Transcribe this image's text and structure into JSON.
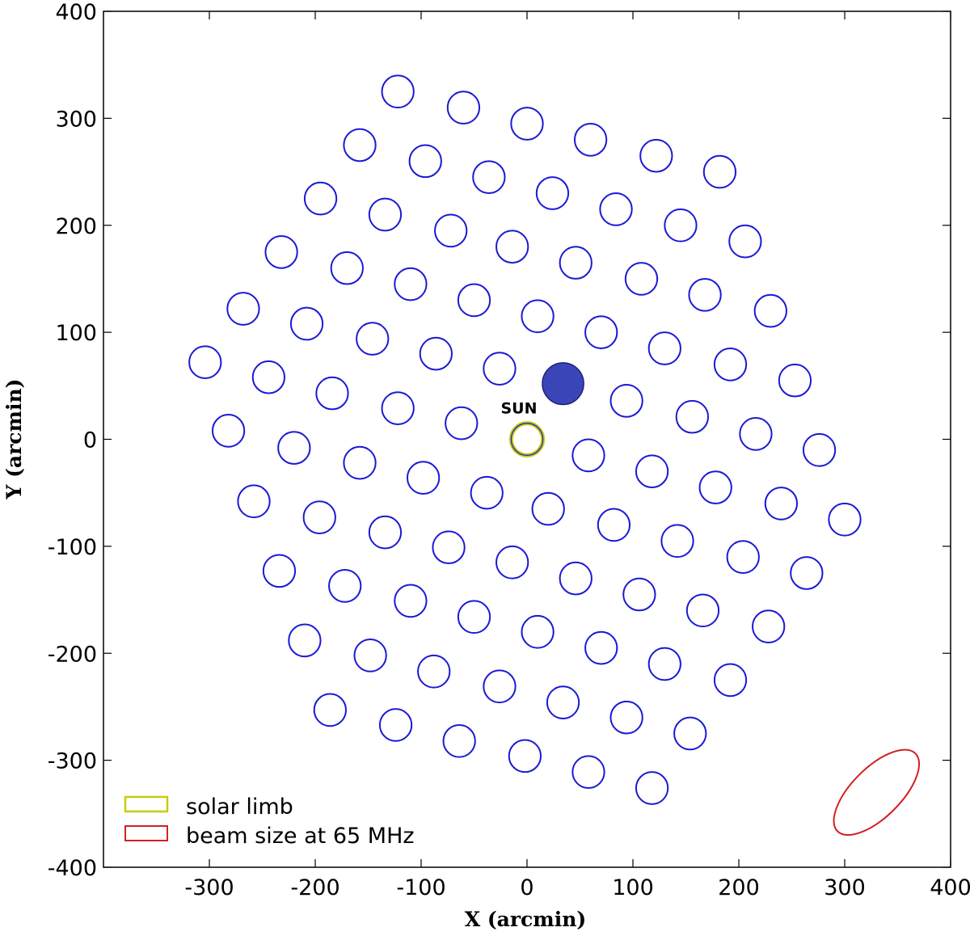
{
  "chart_data": {
    "type": "scatter",
    "xlabel": "X (arcmin)",
    "ylabel": "Y (arcmin)",
    "xlim": [
      -400,
      400
    ],
    "ylim": [
      -400,
      400
    ],
    "x_ticks": [
      -300,
      -200,
      -100,
      0,
      100,
      200,
      300,
      400
    ],
    "y_ticks": [
      -400,
      -300,
      -200,
      -100,
      0,
      100,
      200,
      300,
      400
    ],
    "grid": false,
    "beam_radius": 15,
    "colors": {
      "beam": "#1a1ad6",
      "filled_beam": "#3a46b8",
      "solar_limb": "#c7cc10",
      "beam_size": "#d42020"
    },
    "beams": [
      {
        "x": -122,
        "y": 325
      },
      {
        "x": -60,
        "y": 310
      },
      {
        "x": 0,
        "y": 295
      },
      {
        "x": 60,
        "y": 280
      },
      {
        "x": 122,
        "y": 265
      },
      {
        "x": 182,
        "y": 250
      },
      {
        "x": -158,
        "y": 275
      },
      {
        "x": -96,
        "y": 260
      },
      {
        "x": -36,
        "y": 245
      },
      {
        "x": 24,
        "y": 230
      },
      {
        "x": 84,
        "y": 215
      },
      {
        "x": 145,
        "y": 200
      },
      {
        "x": 206,
        "y": 185
      },
      {
        "x": -195,
        "y": 225
      },
      {
        "x": -134,
        "y": 210
      },
      {
        "x": -72,
        "y": 195
      },
      {
        "x": -14,
        "y": 180
      },
      {
        "x": 46,
        "y": 165
      },
      {
        "x": 108,
        "y": 150
      },
      {
        "x": 168,
        "y": 135
      },
      {
        "x": 230,
        "y": 120
      },
      {
        "x": -232,
        "y": 175
      },
      {
        "x": -170,
        "y": 160
      },
      {
        "x": -110,
        "y": 145
      },
      {
        "x": -50,
        "y": 130
      },
      {
        "x": 10,
        "y": 115
      },
      {
        "x": 70,
        "y": 100
      },
      {
        "x": 130,
        "y": 85
      },
      {
        "x": 192,
        "y": 70
      },
      {
        "x": 253,
        "y": 55
      },
      {
        "x": -268,
        "y": 122
      },
      {
        "x": -208,
        "y": 108
      },
      {
        "x": -146,
        "y": 94
      },
      {
        "x": -86,
        "y": 80
      },
      {
        "x": -26,
        "y": 66
      },
      {
        "x": 34,
        "y": 52,
        "filled": true
      },
      {
        "x": 94,
        "y": 36
      },
      {
        "x": 156,
        "y": 21
      },
      {
        "x": 216,
        "y": 5
      },
      {
        "x": 276,
        "y": -10
      },
      {
        "x": -304,
        "y": 72
      },
      {
        "x": -244,
        "y": 58
      },
      {
        "x": -184,
        "y": 43
      },
      {
        "x": -122,
        "y": 29
      },
      {
        "x": -62,
        "y": 15
      },
      {
        "x": 58,
        "y": -15
      },
      {
        "x": 118,
        "y": -30
      },
      {
        "x": 178,
        "y": -45
      },
      {
        "x": 240,
        "y": -60
      },
      {
        "x": 300,
        "y": -75
      },
      {
        "x": -282,
        "y": 8
      },
      {
        "x": -220,
        "y": -8
      },
      {
        "x": -158,
        "y": -22
      },
      {
        "x": -98,
        "y": -36
      },
      {
        "x": -38,
        "y": -50
      },
      {
        "x": 20,
        "y": -65
      },
      {
        "x": 82,
        "y": -80
      },
      {
        "x": 142,
        "y": -95
      },
      {
        "x": 204,
        "y": -110
      },
      {
        "x": 264,
        "y": -125
      },
      {
        "x": -258,
        "y": -58
      },
      {
        "x": -196,
        "y": -73
      },
      {
        "x": -134,
        "y": -87
      },
      {
        "x": -74,
        "y": -101
      },
      {
        "x": -14,
        "y": -115
      },
      {
        "x": 46,
        "y": -130
      },
      {
        "x": 106,
        "y": -145
      },
      {
        "x": 166,
        "y": -160
      },
      {
        "x": 228,
        "y": -175
      },
      {
        "x": -234,
        "y": -123
      },
      {
        "x": -172,
        "y": -137
      },
      {
        "x": -110,
        "y": -151
      },
      {
        "x": -50,
        "y": -166
      },
      {
        "x": 10,
        "y": -180
      },
      {
        "x": 70,
        "y": -195
      },
      {
        "x": 130,
        "y": -210
      },
      {
        "x": 192,
        "y": -225
      },
      {
        "x": -210,
        "y": -188
      },
      {
        "x": -148,
        "y": -202
      },
      {
        "x": -88,
        "y": -217
      },
      {
        "x": -26,
        "y": -231
      },
      {
        "x": 34,
        "y": -246
      },
      {
        "x": 94,
        "y": -260
      },
      {
        "x": 154,
        "y": -275
      },
      {
        "x": -186,
        "y": -253
      },
      {
        "x": -124,
        "y": -267
      },
      {
        "x": -64,
        "y": -282
      },
      {
        "x": -2,
        "y": -296
      },
      {
        "x": 58,
        "y": -311
      },
      {
        "x": 118,
        "y": -326
      }
    ],
    "sun": {
      "x": 0,
      "y": 0,
      "radius": 15,
      "label": "SUN"
    },
    "beam_size_ellipse": {
      "x": 330,
      "y": -330,
      "rx": 52,
      "ry": 23,
      "angle_deg": 45
    },
    "legend": {
      "position": "lower-left",
      "entries": [
        {
          "label": "solar limb",
          "color": "#c7cc10"
        },
        {
          "label": "beam size at 65 MHz",
          "color": "#d42020"
        }
      ]
    }
  }
}
